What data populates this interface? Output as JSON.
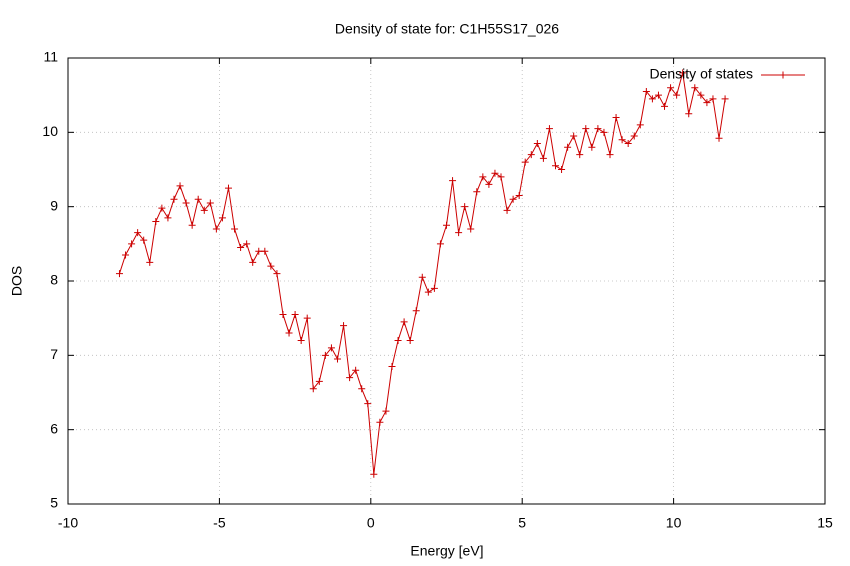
{
  "chart_data": {
    "type": "line",
    "title": "Density of state for: C1H55S17_026",
    "x_label": "Energy [eV]",
    "y_label": "DOS",
    "xlim": [
      -10,
      15
    ],
    "xticks": [
      -10,
      -5,
      0,
      5,
      10,
      15
    ],
    "ylim": [
      5,
      11
    ],
    "yticks": [
      5,
      6,
      7,
      8,
      9,
      10,
      11
    ],
    "grid": true,
    "legend": "upper right",
    "x": [
      -8.3,
      -8.1,
      -7.9,
      -7.7,
      -7.5,
      -7.3,
      -7.1,
      -6.9,
      -6.7,
      -6.5,
      -6.3,
      -6.1,
      -5.9,
      -5.7,
      -5.5,
      -5.3,
      -5.1,
      -4.9,
      -4.7,
      -4.5,
      -4.3,
      -4.1,
      -3.9,
      -3.7,
      -3.5,
      -3.3,
      -3.1,
      -2.9,
      -2.7,
      -2.5,
      -2.3,
      -2.1,
      -1.9,
      -1.7,
      -1.5,
      -1.3,
      -1.1,
      -0.9,
      -0.7,
      -0.5,
      -0.3,
      -0.1,
      0.1,
      0.3,
      0.5,
      0.7,
      0.9,
      1.1,
      1.3,
      1.5,
      1.7,
      1.9,
      2.1,
      2.3,
      2.5,
      2.7,
      2.9,
      3.1,
      3.3,
      3.5,
      3.7,
      3.9,
      4.1,
      4.3,
      4.5,
      4.7,
      4.9,
      5.1,
      5.3,
      5.5,
      5.7,
      5.9,
      6.1,
      6.3,
      6.5,
      6.7,
      6.9,
      7.1,
      7.3,
      7.5,
      7.7,
      7.9,
      8.1,
      8.3,
      8.5,
      8.7,
      8.9,
      9.1,
      9.3,
      9.5,
      9.7,
      9.9,
      10.1,
      10.3,
      10.5,
      10.7,
      10.9,
      11.1,
      11.3,
      11.5,
      11.7
    ],
    "series": [
      {
        "name": "Density of states",
        "color": "#cc0000",
        "values": [
          8.1,
          8.35,
          8.5,
          8.65,
          8.55,
          8.25,
          8.8,
          8.98,
          8.85,
          9.1,
          9.28,
          9.05,
          8.75,
          9.1,
          8.95,
          9.05,
          8.7,
          8.85,
          9.25,
          8.7,
          8.45,
          8.5,
          8.25,
          8.4,
          8.4,
          8.2,
          8.1,
          7.55,
          7.3,
          7.55,
          7.2,
          7.5,
          6.55,
          6.65,
          7.0,
          7.1,
          6.95,
          7.4,
          6.7,
          6.8,
          6.55,
          6.35,
          5.4,
          6.1,
          6.25,
          6.85,
          7.2,
          7.45,
          7.2,
          7.6,
          8.05,
          7.85,
          7.9,
          8.5,
          8.75,
          9.35,
          8.65,
          9.0,
          8.7,
          9.2,
          9.4,
          9.3,
          9.45,
          9.4,
          8.95,
          9.1,
          9.15,
          9.6,
          9.7,
          9.85,
          9.65,
          10.05,
          9.55,
          9.5,
          9.8,
          9.95,
          9.7,
          10.05,
          9.8,
          10.05,
          10.0,
          9.7,
          10.2,
          9.9,
          9.85,
          9.95,
          10.1,
          10.55,
          10.45,
          10.5,
          10.35,
          10.6,
          10.5,
          10.8,
          10.25,
          10.6,
          10.5,
          10.4,
          10.45,
          9.92,
          10.45
        ]
      }
    ]
  }
}
